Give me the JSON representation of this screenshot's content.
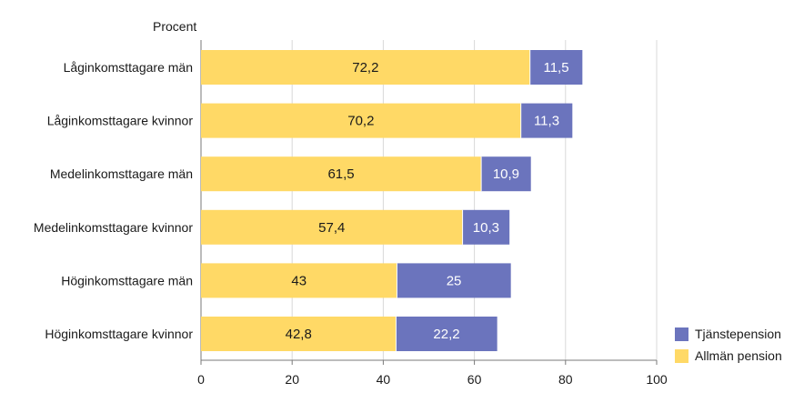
{
  "chart_data": {
    "type": "bar",
    "orientation": "horizontal",
    "stacked": true,
    "ylabel": "Procent",
    "categories": [
      "Låginkomsttagare män",
      "Låginkomsttagare kvinnor",
      "Medelinkomsttagare män",
      "Medelinkomsttagare kvinnor",
      "Höginkomsttagare män",
      "Höginkomsttagare kvinnor"
    ],
    "series": [
      {
        "name": "Allmän pension",
        "color": "#FFD966",
        "values": [
          72.2,
          70.2,
          61.5,
          57.4,
          43,
          42.8
        ],
        "labels": [
          "72,2",
          "70,2",
          "61,5",
          "57,4",
          "43",
          "42,8"
        ]
      },
      {
        "name": "Tjänstepension",
        "color": "#6B74BD",
        "values": [
          11.5,
          11.3,
          10.9,
          10.3,
          25,
          22.2
        ],
        "labels": [
          "11,5",
          "11,3",
          "10,9",
          "10,3",
          "25",
          "22,2"
        ]
      }
    ],
    "xlim": [
      0,
      100
    ],
    "xticks": [
      0,
      20,
      40,
      60,
      80,
      100
    ],
    "grid": true,
    "legend_position": "bottom-right",
    "legend_order": [
      "Tjänstepension",
      "Allmän pension"
    ]
  }
}
